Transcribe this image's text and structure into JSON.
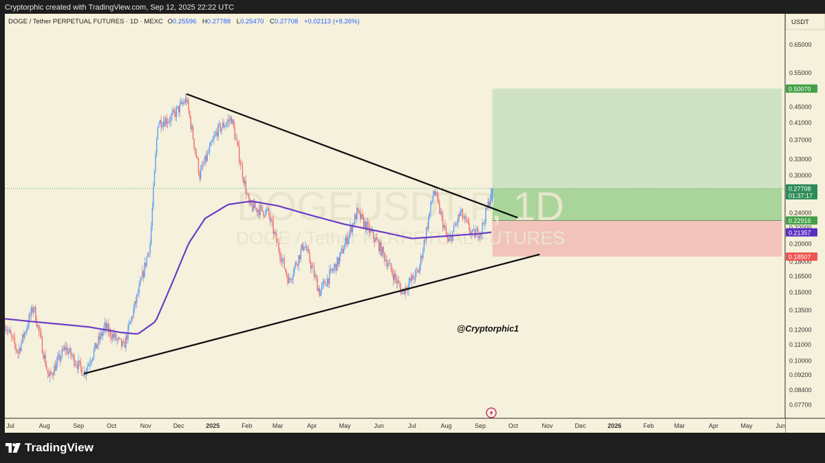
{
  "header": {
    "attribution": "Cryptorphic created with TradingView.com, Sep 12, 2025 22:22 UTC"
  },
  "legend": {
    "symbol": "DOGE / Tether PERPETUAL FUTURES · 1D · MEXC",
    "open_label": "O",
    "open": "0.25596",
    "high_label": "H",
    "high": "0.27788",
    "low_label": "L",
    "low": "0.25470",
    "close_label": "C",
    "close": "0.27708",
    "change": "+0.02113 (+8.26%)"
  },
  "currency": "USDT",
  "watermark": {
    "line1": "DOGEUSDT.P, 1D",
    "line2": "DOGE / Tether PERPETUAL FUTURES"
  },
  "annotation": "@Cryptorphic1",
  "footer": {
    "brand": "TradingView"
  },
  "colors": {
    "background": "#f5f1dc",
    "up": "#5b9cf5",
    "down": "#ef6f6c",
    "ma": "#6a3bc5",
    "target_zone": "#cfe3c4",
    "entry_zone": "#a9d59a",
    "stop_zone": "#f2c3bb",
    "trendline": "#111111"
  },
  "chart_data": {
    "type": "candlestick",
    "x_axis": {
      "start": "2024-06-26",
      "end": "2026-06-05",
      "ticks": [
        {
          "label": "Jul",
          "date": "2024-07-01"
        },
        {
          "label": "Aug",
          "date": "2024-08-01"
        },
        {
          "label": "Sep",
          "date": "2024-09-01"
        },
        {
          "label": "Oct",
          "date": "2024-10-01"
        },
        {
          "label": "Nov",
          "date": "2024-11-01"
        },
        {
          "label": "Dec",
          "date": "2024-12-01"
        },
        {
          "label": "2025",
          "date": "2025-01-01",
          "bold": true
        },
        {
          "label": "Feb",
          "date": "2025-02-01"
        },
        {
          "label": "Mar",
          "date": "2025-03-01"
        },
        {
          "label": "Apr",
          "date": "2025-04-01"
        },
        {
          "label": "May",
          "date": "2025-05-01"
        },
        {
          "label": "Jun",
          "date": "2025-06-01"
        },
        {
          "label": "Jul",
          "date": "2025-07-01"
        },
        {
          "label": "Aug",
          "date": "2025-08-01"
        },
        {
          "label": "Sep",
          "date": "2025-09-01"
        },
        {
          "label": "Oct",
          "date": "2025-10-01"
        },
        {
          "label": "Nov",
          "date": "2025-11-01"
        },
        {
          "label": "Dec",
          "date": "2025-12-01"
        },
        {
          "label": "2026",
          "date": "2026-01-01",
          "bold": true
        },
        {
          "label": "Feb",
          "date": "2026-02-01"
        },
        {
          "label": "Mar",
          "date": "2026-03-01"
        },
        {
          "label": "Apr",
          "date": "2026-04-01"
        },
        {
          "label": "May",
          "date": "2026-05-01"
        },
        {
          "label": "Jun",
          "date": "2026-06-01"
        }
      ]
    },
    "y_axis": {
      "scale": "log",
      "range": [
        0.071,
        0.78
      ],
      "ticks": [
        "0.65000",
        "0.55000",
        "0.50070",
        "0.45000",
        "0.41000",
        "0.37000",
        "0.33000",
        "0.30000",
        "0.27708",
        "0.24000",
        "0.22000",
        "0.20000",
        "0.18000",
        "0.16500",
        "0.15000",
        "0.13500",
        "0.12000",
        "0.11000",
        "0.10000",
        "0.09200",
        "0.08400",
        "0.07700"
      ]
    },
    "price_series": {
      "name": "DOGEUSDT.P",
      "anchors": [
        [
          "2024-06-26",
          0.124
        ],
        [
          "2024-07-08",
          0.105
        ],
        [
          "2024-07-22",
          0.138
        ],
        [
          "2024-08-05",
          0.09
        ],
        [
          "2024-08-20",
          0.108
        ],
        [
          "2024-09-06",
          0.093
        ],
        [
          "2024-09-25",
          0.122
        ],
        [
          "2024-10-12",
          0.108
        ],
        [
          "2024-10-28",
          0.16
        ],
        [
          "2024-11-05",
          0.2
        ],
        [
          "2024-11-12",
          0.41
        ],
        [
          "2024-11-24",
          0.42
        ],
        [
          "2024-12-08",
          0.47
        ],
        [
          "2024-12-20",
          0.3
        ],
        [
          "2025-01-05",
          0.39
        ],
        [
          "2025-01-18",
          0.42
        ],
        [
          "2025-02-03",
          0.25
        ],
        [
          "2025-02-20",
          0.24
        ],
        [
          "2025-03-11",
          0.16
        ],
        [
          "2025-03-25",
          0.2
        ],
        [
          "2025-04-08",
          0.15
        ],
        [
          "2025-04-25",
          0.18
        ],
        [
          "2025-05-12",
          0.24
        ],
        [
          "2025-05-31",
          0.2
        ],
        [
          "2025-06-22",
          0.15
        ],
        [
          "2025-07-07",
          0.17
        ],
        [
          "2025-07-21",
          0.275
        ],
        [
          "2025-08-03",
          0.2
        ],
        [
          "2025-08-14",
          0.24
        ],
        [
          "2025-08-25",
          0.21
        ],
        [
          "2025-09-02",
          0.216
        ],
        [
          "2025-09-12",
          0.277
        ]
      ],
      "last": {
        "open": 0.25596,
        "high": 0.27788,
        "low": 0.2547,
        "close": 0.27708
      }
    },
    "moving_average": {
      "anchors": [
        [
          "2024-06-26",
          0.128
        ],
        [
          "2024-07-20",
          0.126
        ],
        [
          "2024-08-15",
          0.124
        ],
        [
          "2024-09-10",
          0.122
        ],
        [
          "2024-10-10",
          0.118
        ],
        [
          "2024-10-25",
          0.117
        ],
        [
          "2024-11-10",
          0.126
        ],
        [
          "2024-11-25",
          0.158
        ],
        [
          "2024-12-10",
          0.2
        ],
        [
          "2024-12-25",
          0.232
        ],
        [
          "2025-01-15",
          0.252
        ],
        [
          "2025-02-05",
          0.257
        ],
        [
          "2025-03-01",
          0.25
        ],
        [
          "2025-04-01",
          0.236
        ],
        [
          "2025-05-01",
          0.224
        ],
        [
          "2025-06-01",
          0.215
        ],
        [
          "2025-07-01",
          0.206
        ],
        [
          "2025-08-01",
          0.209
        ],
        [
          "2025-09-01",
          0.212
        ],
        [
          "2025-09-12",
          0.214
        ]
      ]
    },
    "trendlines": [
      {
        "from": [
          "2024-12-08",
          0.485
        ],
        "to": [
          "2025-10-05",
          0.233
        ]
      },
      {
        "from": [
          "2024-09-06",
          0.0925
        ],
        "to": [
          "2025-10-25",
          0.1875
        ]
      }
    ],
    "position": {
      "start": "2025-09-12",
      "end": "2026-06-02",
      "target": 0.5007,
      "entry": 0.22916,
      "stop": 0.18507
    },
    "price_labels": [
      {
        "value": 0.5007,
        "text": "0.50070",
        "color": "#43a047"
      },
      {
        "value": 0.27708,
        "text": "0.27708",
        "sub": "01:37:17",
        "color": "#2e8b57"
      },
      {
        "value": 0.22916,
        "text": "0.22916",
        "color": "#43a047"
      },
      {
        "value": 0.21357,
        "text": "0.21357",
        "color": "#5b2fc0"
      },
      {
        "value": 0.18507,
        "text": "0.18507",
        "color": "#ef5350"
      }
    ]
  }
}
